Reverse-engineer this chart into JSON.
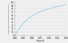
{
  "title": "",
  "xlabel": "Temps (h)",
  "ylabel": "Concentration en oxygène (% saturation)",
  "xlim": [
    0.0,
    0.15
  ],
  "ylim": [
    0,
    100
  ],
  "xticks": [
    0.0,
    0.025,
    0.05,
    0.075,
    0.1,
    0.125,
    0.15
  ],
  "yticks": [
    0,
    10,
    20,
    30,
    40,
    50,
    60,
    70,
    80,
    90,
    100
  ],
  "line_color": "#7ecfe0",
  "line_width": 0.6,
  "bg_color": "#f0f0f0",
  "grid_color": "#d8d8d8",
  "x_data": [
    0.0,
    0.003,
    0.006,
    0.009,
    0.013,
    0.017,
    0.022,
    0.027,
    0.033,
    0.04,
    0.048,
    0.057,
    0.067,
    0.078,
    0.09,
    0.103,
    0.117,
    0.131,
    0.143,
    0.15
  ],
  "y_data": [
    0,
    5,
    10,
    15,
    21,
    27,
    33,
    39,
    45,
    51,
    57,
    63,
    68,
    73,
    77,
    81,
    85,
    88,
    91,
    93
  ]
}
